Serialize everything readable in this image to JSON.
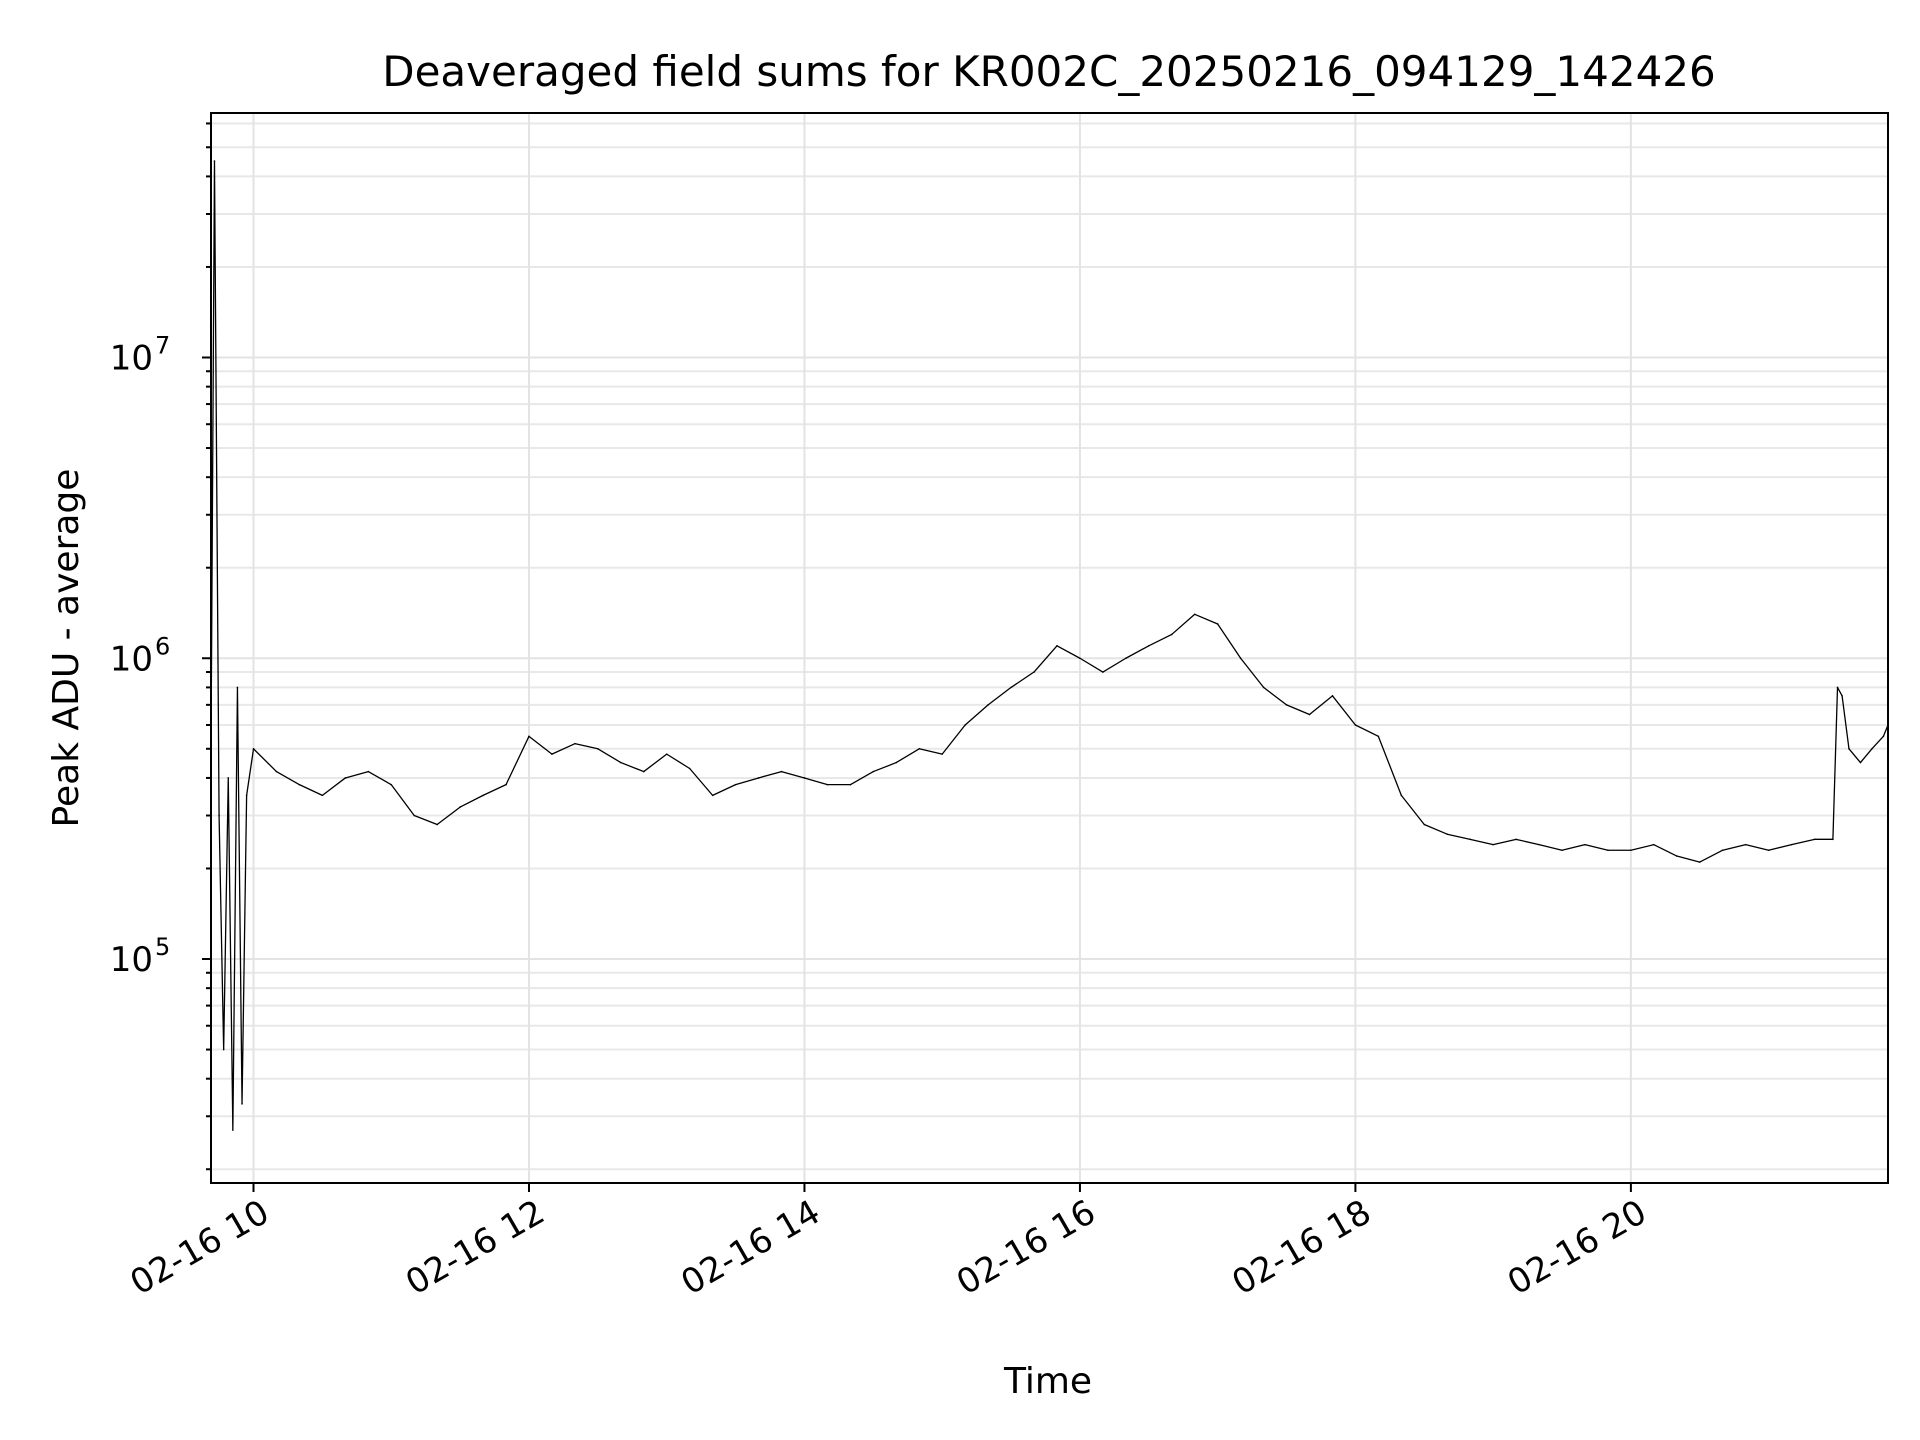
{
  "chart_data": {
    "type": "line",
    "title": "Deaveraged field sums for KR002C_20250216_094129_142426",
    "xlabel": "Time",
    "ylabel": "Peak ADU - average",
    "yscale": "log",
    "ylim": [
      18000,
      65000000
    ],
    "xlim": [
      "2025-02-16T09:41:29",
      "2025-02-16T21:52:00"
    ],
    "x_ticks": [
      {
        "value": "2025-02-16T10:00:00",
        "label": "02-16 10"
      },
      {
        "value": "2025-02-16T12:00:00",
        "label": "02-16 12"
      },
      {
        "value": "2025-02-16T14:00:00",
        "label": "02-16 14"
      },
      {
        "value": "2025-02-16T16:00:00",
        "label": "02-16 16"
      },
      {
        "value": "2025-02-16T18:00:00",
        "label": "02-16 18"
      },
      {
        "value": "2025-02-16T20:00:00",
        "label": "02-16 20"
      }
    ],
    "y_ticks": [
      {
        "value": 100000,
        "base": "10",
        "exp": "5"
      },
      {
        "value": 1000000,
        "base": "10",
        "exp": "6"
      },
      {
        "value": 10000000,
        "base": "10",
        "exp": "7"
      }
    ],
    "grid": true,
    "line_color": "#000000",
    "series": [
      {
        "x": [
          "2025-02-16T09:41:29",
          "2025-02-16T09:43:00",
          "2025-02-16T09:45:00",
          "2025-02-16T09:47:00",
          "2025-02-16T09:49:00",
          "2025-02-16T09:51:00",
          "2025-02-16T09:53:00",
          "2025-02-16T09:55:00",
          "2025-02-16T09:57:00",
          "2025-02-16T10:00:00",
          "2025-02-16T10:10:00",
          "2025-02-16T10:20:00",
          "2025-02-16T10:30:00",
          "2025-02-16T10:40:00",
          "2025-02-16T10:50:00",
          "2025-02-16T11:00:00",
          "2025-02-16T11:10:00",
          "2025-02-16T11:20:00",
          "2025-02-16T11:30:00",
          "2025-02-16T11:40:00",
          "2025-02-16T11:50:00",
          "2025-02-16T12:00:00",
          "2025-02-16T12:10:00",
          "2025-02-16T12:20:00",
          "2025-02-16T12:30:00",
          "2025-02-16T12:40:00",
          "2025-02-16T12:50:00",
          "2025-02-16T13:00:00",
          "2025-02-16T13:10:00",
          "2025-02-16T13:20:00",
          "2025-02-16T13:30:00",
          "2025-02-16T13:40:00",
          "2025-02-16T13:50:00",
          "2025-02-16T14:00:00",
          "2025-02-16T14:10:00",
          "2025-02-16T14:20:00",
          "2025-02-16T14:30:00",
          "2025-02-16T14:40:00",
          "2025-02-16T14:50:00",
          "2025-02-16T15:00:00",
          "2025-02-16T15:10:00",
          "2025-02-16T15:20:00",
          "2025-02-16T15:30:00",
          "2025-02-16T15:40:00",
          "2025-02-16T15:50:00",
          "2025-02-16T16:00:00",
          "2025-02-16T16:10:00",
          "2025-02-16T16:20:00",
          "2025-02-16T16:30:00",
          "2025-02-16T16:40:00",
          "2025-02-16T16:50:00",
          "2025-02-16T17:00:00",
          "2025-02-16T17:10:00",
          "2025-02-16T17:20:00",
          "2025-02-16T17:30:00",
          "2025-02-16T17:40:00",
          "2025-02-16T17:50:00",
          "2025-02-16T18:00:00",
          "2025-02-16T18:10:00",
          "2025-02-16T18:20:00",
          "2025-02-16T18:30:00",
          "2025-02-16T18:40:00",
          "2025-02-16T18:50:00",
          "2025-02-16T19:00:00",
          "2025-02-16T19:10:00",
          "2025-02-16T19:20:00",
          "2025-02-16T19:30:00",
          "2025-02-16T19:40:00",
          "2025-02-16T19:50:00",
          "2025-02-16T20:00:00",
          "2025-02-16T20:10:00",
          "2025-02-16T20:20:00",
          "2025-02-16T20:30:00",
          "2025-02-16T20:40:00",
          "2025-02-16T20:50:00",
          "2025-02-16T21:00:00",
          "2025-02-16T21:10:00",
          "2025-02-16T21:20:00",
          "2025-02-16T21:28:00",
          "2025-02-16T21:30:00",
          "2025-02-16T21:32:00",
          "2025-02-16T21:35:00",
          "2025-02-16T21:40:00",
          "2025-02-16T21:45:00",
          "2025-02-16T21:50:00",
          "2025-02-16T21:52:00"
        ],
        "y": [
          500000,
          45000000,
          300000,
          50000,
          400000,
          27000,
          800000,
          33000,
          350000,
          500000,
          420000,
          380000,
          350000,
          400000,
          420000,
          380000,
          300000,
          280000,
          320000,
          350000,
          380000,
          550000,
          480000,
          520000,
          500000,
          450000,
          420000,
          480000,
          430000,
          350000,
          380000,
          400000,
          420000,
          400000,
          380000,
          380000,
          420000,
          450000,
          500000,
          480000,
          600000,
          700000,
          800000,
          900000,
          1100000,
          1000000,
          900000,
          1000000,
          1100000,
          1200000,
          1400000,
          1300000,
          1000000,
          800000,
          700000,
          650000,
          750000,
          600000,
          550000,
          350000,
          280000,
          260000,
          250000,
          240000,
          250000,
          240000,
          230000,
          240000,
          230000,
          230000,
          240000,
          220000,
          210000,
          230000,
          240000,
          230000,
          240000,
          250000,
          250000,
          800000,
          750000,
          500000,
          450000,
          500000,
          550000,
          600000
        ]
      }
    ]
  }
}
